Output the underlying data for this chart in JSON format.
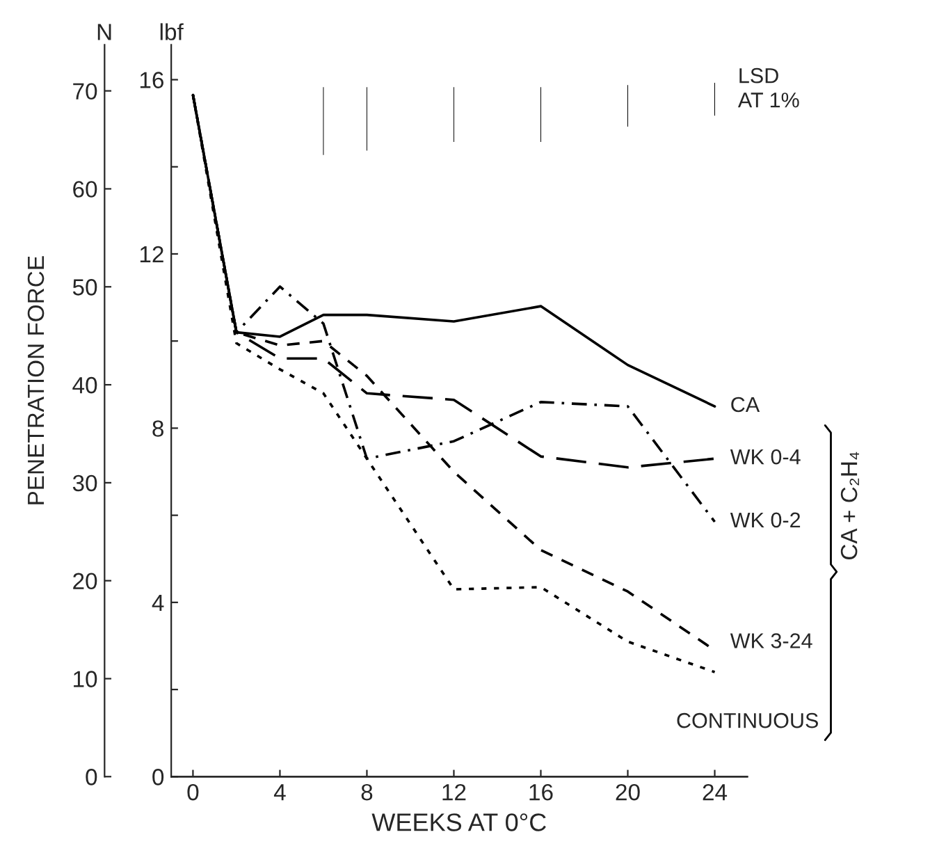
{
  "chart_data": {
    "type": "line",
    "xlabel": "WEEKS AT 0°C",
    "ylabel": "lbf",
    "y2label": "N",
    "xlim": [
      -1,
      25.5
    ],
    "xticks": [
      0,
      4,
      8,
      12,
      16,
      20,
      24
    ],
    "ylim": [
      0,
      16.8
    ],
    "yticks": [
      0,
      {
        "value": 2,
        "label": null
      },
      4,
      {
        "value": 6,
        "label": null
      },
      8,
      {
        "value": 10,
        "label": null
      },
      12,
      {
        "value": 14,
        "label": null
      },
      16
    ],
    "y2lim": [
      0,
      74.7
    ],
    "y2ticks": [
      0,
      10,
      20,
      30,
      40,
      50,
      60,
      70
    ],
    "series": [
      {
        "name": "CA",
        "color": "#000000",
        "line_style": "solid",
        "x": [
          0,
          2,
          4,
          6,
          8,
          12,
          16,
          20,
          24
        ],
        "values": [
          15.65,
          10.2,
          10.1,
          10.6,
          10.6,
          10.45,
          10.8,
          9.45,
          8.5
        ]
      },
      {
        "name": "WK 0-4",
        "color": "#000000",
        "line_style": "longdash",
        "x": [
          0,
          2,
          4,
          6,
          8,
          12,
          16,
          20,
          24
        ],
        "values": [
          15.65,
          10.2,
          9.6,
          9.6,
          8.8,
          8.65,
          7.35,
          7.1,
          7.3
        ]
      },
      {
        "name": "WK 0-2",
        "color": "#000000",
        "line_style": "dashdot",
        "x": [
          0,
          2,
          4,
          6,
          8,
          12,
          16,
          20,
          24
        ],
        "values": [
          15.65,
          10.2,
          11.25,
          10.4,
          7.3,
          7.7,
          8.6,
          8.5,
          5.85
        ]
      },
      {
        "name": "WK 3-24",
        "color": "#000000",
        "line_style": "dashed",
        "x": [
          0,
          2,
          4,
          6,
          8,
          12,
          16,
          20,
          24
        ],
        "values": [
          15.65,
          10.2,
          9.9,
          10.0,
          9.2,
          7.0,
          5.2,
          4.25,
          2.9
        ]
      },
      {
        "name": "CONTINUOUS",
        "color": "#000000",
        "line_style": "dotted",
        "x": [
          0,
          2,
          4,
          6,
          12,
          16,
          20,
          24
        ],
        "values": [
          15.65,
          9.95,
          9.35,
          8.8,
          4.3,
          4.35,
          3.1,
          2.4
        ]
      },
      {
        "name": "LSD\nAT 1%",
        "type": "bar",
        "color": "#000000",
        "x": [
          6,
          8,
          12,
          16,
          20,
          24
        ],
        "base": [
          14.25,
          14.35,
          14.55,
          14.55,
          14.9,
          15.15
        ],
        "values": [
          1.6,
          1.5,
          1.3,
          1.3,
          1.0,
          0.8
        ]
      }
    ],
    "annotations": [
      "PENETRATION FORCE",
      "CA + C₂H₄"
    ],
    "grid": false,
    "legend": false
  }
}
